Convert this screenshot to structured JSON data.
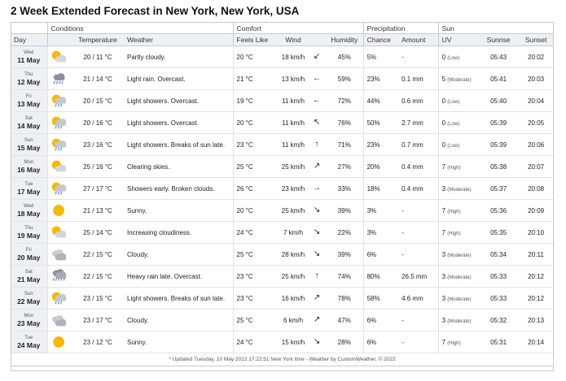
{
  "title": "2 Week Extended Forecast in New York, New York, USA",
  "groups": {
    "conditions": "Conditions",
    "comfort": "Comfort",
    "precipitation": "Precipitation",
    "sun": "Sun"
  },
  "headers": {
    "day": "Day",
    "temperature": "Temperature",
    "weather": "Weather",
    "feels_like": "Feels Like",
    "wind": "Wind",
    "humidity": "Humidity",
    "chance": "Chance",
    "amount": "Amount",
    "uv": "UV",
    "sunrise": "Sunrise",
    "sunset": "Sunset"
  },
  "rows": [
    {
      "dow": "Wed",
      "date": "11 May",
      "icon": "partly-cloudy-icon",
      "temp": "20 / 11 °C",
      "weather": "Partly cloudy.",
      "feels": "20 °C",
      "wind": "18 km/h",
      "arrow": "↙",
      "humidity": "45%",
      "chance": "5%",
      "amount": "-",
      "uv": "0",
      "uv_label": "(Low)",
      "sunrise": "05:43",
      "sunset": "20:02"
    },
    {
      "dow": "Thu",
      "date": "12 May",
      "icon": "rain-cloud-icon",
      "temp": "21 / 14 °C",
      "weather": "Light rain. Overcast.",
      "feels": "21 °C",
      "wind": "13 km/h",
      "arrow": "←",
      "humidity": "59%",
      "chance": "23%",
      "amount": "0.1 mm",
      "uv": "5",
      "uv_label": "(Moderate)",
      "sunrise": "05:41",
      "sunset": "20:03"
    },
    {
      "dow": "Fri",
      "date": "13 May",
      "icon": "sun-showers-icon",
      "temp": "20 / 15 °C",
      "weather": "Light showers. Overcast.",
      "feels": "19 °C",
      "wind": "11 km/h",
      "arrow": "←",
      "humidity": "72%",
      "chance": "44%",
      "amount": "0.6 mm",
      "uv": "0",
      "uv_label": "(Low)",
      "sunrise": "05:40",
      "sunset": "20:04"
    },
    {
      "dow": "Sat",
      "date": "14 May",
      "icon": "sun-showers-icon",
      "temp": "20 / 16 °C",
      "weather": "Light showers. Overcast.",
      "feels": "20 °C",
      "wind": "11 km/h",
      "arrow": "↖",
      "humidity": "76%",
      "chance": "50%",
      "amount": "2.7 mm",
      "uv": "0",
      "uv_label": "(Low)",
      "sunrise": "05:39",
      "sunset": "20:05"
    },
    {
      "dow": "Sun",
      "date": "15 May",
      "icon": "sun-showers-icon",
      "temp": "23 / 16 °C",
      "weather": "Light showers. Breaks of sun late.",
      "feels": "23 °C",
      "wind": "11 km/h",
      "arrow": "↑",
      "humidity": "71%",
      "chance": "23%",
      "amount": "0.7 mm",
      "uv": "0",
      "uv_label": "(Low)",
      "sunrise": "05:39",
      "sunset": "20:06"
    },
    {
      "dow": "Mon",
      "date": "16 May",
      "icon": "partly-cloudy-icon",
      "temp": "25 / 16 °C",
      "weather": "Clearing skies.",
      "feels": "25 °C",
      "wind": "25 km/h",
      "arrow": "↗",
      "humidity": "27%",
      "chance": "20%",
      "amount": "0.4 mm",
      "uv": "7",
      "uv_label": "(High)",
      "sunrise": "05:38",
      "sunset": "20:07"
    },
    {
      "dow": "Tue",
      "date": "17 May",
      "icon": "sun-showers-icon",
      "temp": "27 / 17 °C",
      "weather": "Showers early. Broken clouds.",
      "feels": "26 °C",
      "wind": "23 km/h",
      "arrow": "→",
      "humidity": "33%",
      "chance": "18%",
      "amount": "0.4 mm",
      "uv": "3",
      "uv_label": "(Moderate)",
      "sunrise": "05:37",
      "sunset": "20:08"
    },
    {
      "dow": "Wed",
      "date": "18 May",
      "icon": "sun-icon",
      "temp": "21 / 13 °C",
      "weather": "Sunny.",
      "feels": "20 °C",
      "wind": "25 km/h",
      "arrow": "↘",
      "humidity": "39%",
      "chance": "3%",
      "amount": "-",
      "uv": "7",
      "uv_label": "(High)",
      "sunrise": "05:36",
      "sunset": "20:09"
    },
    {
      "dow": "Thu",
      "date": "19 May",
      "icon": "partly-cloudy-icon",
      "temp": "25 / 14 °C",
      "weather": "Increasing cloudiness.",
      "feels": "24 °C",
      "wind": "7 km/h",
      "arrow": "↘",
      "humidity": "22%",
      "chance": "3%",
      "amount": "-",
      "uv": "7",
      "uv_label": "(High)",
      "sunrise": "05:35",
      "sunset": "20:10"
    },
    {
      "dow": "Fri",
      "date": "20 May",
      "icon": "cloudy-icon",
      "temp": "22 / 15 °C",
      "weather": "Cloudy.",
      "feels": "25 °C",
      "wind": "28 km/h",
      "arrow": "↘",
      "humidity": "39%",
      "chance": "6%",
      "amount": "-",
      "uv": "3",
      "uv_label": "(Moderate)",
      "sunrise": "05:34",
      "sunset": "20:11"
    },
    {
      "dow": "Sat",
      "date": "21 May",
      "icon": "heavy-rain-icon",
      "temp": "22 / 15 °C",
      "weather": "Heavy rain late. Overcast.",
      "feels": "23 °C",
      "wind": "25 km/h",
      "arrow": "↑",
      "humidity": "74%",
      "chance": "80%",
      "amount": "26.5 mm",
      "uv": "3",
      "uv_label": "(Moderate)",
      "sunrise": "05:33",
      "sunset": "20:12"
    },
    {
      "dow": "Sun",
      "date": "22 May",
      "icon": "sun-showers-icon",
      "temp": "23 / 15 °C",
      "weather": "Light showers. Breaks of sun late.",
      "feels": "23 °C",
      "wind": "16 km/h",
      "arrow": "↗",
      "humidity": "78%",
      "chance": "58%",
      "amount": "4.6 mm",
      "uv": "3",
      "uv_label": "(Moderate)",
      "sunrise": "05:33",
      "sunset": "20:12"
    },
    {
      "dow": "Mon",
      "date": "23 May",
      "icon": "cloudy-icon",
      "temp": "23 / 17 °C",
      "weather": "Cloudy.",
      "feels": "25 °C",
      "wind": "6 km/h",
      "arrow": "↗",
      "humidity": "47%",
      "chance": "6%",
      "amount": "-",
      "uv": "3",
      "uv_label": "(Moderate)",
      "sunrise": "05:32",
      "sunset": "20:13"
    },
    {
      "dow": "Tue",
      "date": "24 May",
      "icon": "sun-icon",
      "temp": "23 / 12 °C",
      "weather": "Sunny.",
      "feels": "24 °C",
      "wind": "15 km/h",
      "arrow": "↘",
      "humidity": "28%",
      "chance": "6%",
      "amount": "-",
      "uv": "7",
      "uv_label": "(High)",
      "sunrise": "05:31",
      "sunset": "20:14"
    }
  ],
  "footer": "* Updated Tuesday, 10 May 2022 17:22:51 New York time - Weather by CustomWeather, © 2022",
  "colors": {
    "sun": "#f6b800",
    "cloud": "#bfc4cc",
    "rain": "#5a86c8",
    "header_bg": "#eef1f4"
  }
}
